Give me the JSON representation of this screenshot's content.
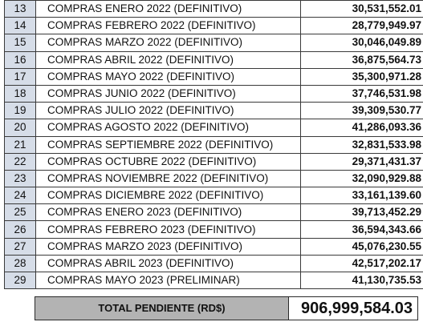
{
  "rows": [
    {
      "num": "13",
      "desc": "COMPRAS ENERO 2022 (DEFINITIVO)",
      "amount": "30,531,552.01"
    },
    {
      "num": "14",
      "desc": "COMPRAS FEBRERO 2022 (DEFINITIVO)",
      "amount": "28,779,949.97"
    },
    {
      "num": "15",
      "desc": "COMPRAS MARZO 2022 (DEFINITIVO)",
      "amount": "30,046,049.89"
    },
    {
      "num": "16",
      "desc": "COMPRAS ABRIL 2022  (DEFINITIVO)",
      "amount": "36,875,564.73"
    },
    {
      "num": "17",
      "desc": "COMPRAS MAYO 2022  (DEFINITIVO)",
      "amount": "35,300,971.28"
    },
    {
      "num": "18",
      "desc": "COMPRAS JUNIO 2022 (DEFINITIVO)",
      "amount": "37,746,531.98"
    },
    {
      "num": "19",
      "desc": "COMPRAS JULIO 2022 (DEFINITIVO)",
      "amount": "39,309,530.77"
    },
    {
      "num": "20",
      "desc": "COMPRAS AGOSTO 2022 (DEFINITIVO)",
      "amount": "41,286,093.36"
    },
    {
      "num": "21",
      "desc": "COMPRAS SEPTIEMBRE 2022 (DEFINITIVO)",
      "amount": "32,831,533.98"
    },
    {
      "num": "22",
      "desc": "COMPRAS OCTUBRE 2022 (DEFINITIVO)",
      "amount": "29,371,431.37"
    },
    {
      "num": "23",
      "desc": "COMPRAS NOVIEMBRE 2022 (DEFINITIVO)",
      "amount": "32,090,929.88"
    },
    {
      "num": "24",
      "desc": "COMPRAS DICIEMBRE 2022 (DEFINITIVO)",
      "amount": "33,161,139.60"
    },
    {
      "num": "25",
      "desc": "COMPRAS ENERO 2023 (DEFINITIVO)",
      "amount": "39,713,452.29"
    },
    {
      "num": "26",
      "desc": "COMPRAS FEBRERO 2023 (DEFINITIVO)",
      "amount": "36,594,343.66"
    },
    {
      "num": "27",
      "desc": "COMPRAS MARZO 2023 (DEFINITIVO)",
      "amount": "45,076,230.55"
    },
    {
      "num": "28",
      "desc": "COMPRAS ABRIL 2023 (DEFINITIVO)",
      "amount": "42,517,202.17"
    },
    {
      "num": "29",
      "desc": "COMPRAS MAYO 2023 (PRELIMINAR)",
      "amount": "41,130,735.53"
    }
  ],
  "total": {
    "label": "TOTAL PENDIENTE (RD$)",
    "value": "906,999,584.03"
  },
  "colors": {
    "row_number_fill": "#d6dde8",
    "total_label_fill": "#b3b3b3"
  }
}
